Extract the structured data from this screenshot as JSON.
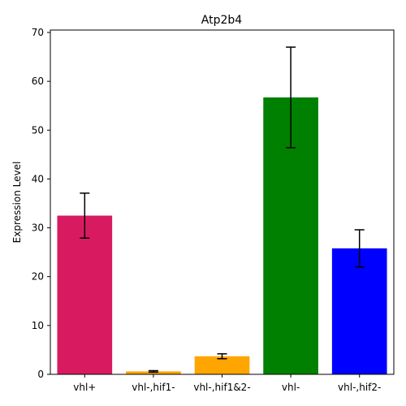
{
  "chart_data": {
    "type": "bar",
    "title": "Atp2b4",
    "xlabel": "",
    "ylabel": "Expression Level",
    "categories": [
      "vhl+",
      "vhl-,hif1-",
      "vhl-,hif1&2-",
      "vhl-",
      "vhl-,hif2-"
    ],
    "values": [
      32.5,
      0.6,
      3.7,
      56.7,
      25.8
    ],
    "error": [
      4.6,
      0.15,
      0.5,
      10.3,
      3.8
    ],
    "colors": [
      "#d81b60",
      "#ffa500",
      "#ffa500",
      "#008000",
      "#0000ff"
    ],
    "ylim": [
      0,
      70.5
    ],
    "yticks": [
      0,
      10,
      20,
      30,
      40,
      50,
      60,
      70
    ],
    "grid": false,
    "legend": "none"
  }
}
